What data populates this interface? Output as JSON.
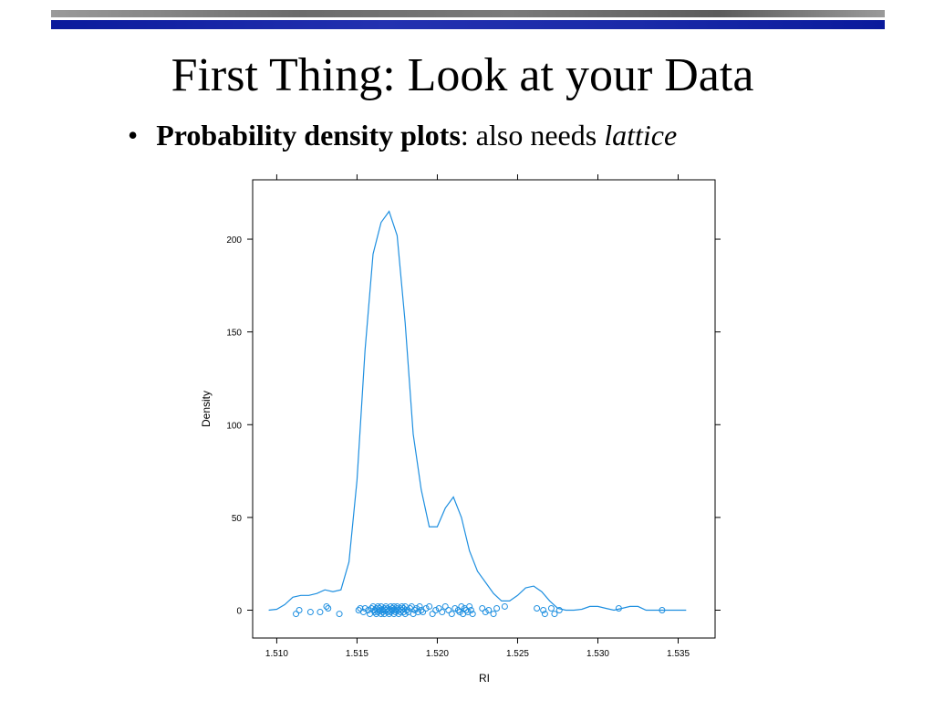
{
  "slide": {
    "title": "First Thing: Look at your Data",
    "bullet_bold": "Probability density plots",
    "bullet_normal": ": also needs ",
    "bullet_italic": "lattice"
  },
  "chart_data": {
    "type": "line",
    "xlabel": "RI",
    "ylabel": "Density",
    "xlim": [
      1.5085,
      1.5373
    ],
    "ylim": [
      -15,
      232
    ],
    "xticks": [
      "1.510",
      "1.515",
      "1.520",
      "1.525",
      "1.530",
      "1.535"
    ],
    "yticks": [
      "0",
      "50",
      "100",
      "150",
      "200"
    ],
    "color": "#1e8fe0",
    "density": {
      "x": [
        1.5095,
        1.51,
        1.5105,
        1.511,
        1.5115,
        1.512,
        1.5125,
        1.513,
        1.5135,
        1.514,
        1.5145,
        1.515,
        1.5155,
        1.516,
        1.5165,
        1.517,
        1.5175,
        1.518,
        1.5185,
        1.519,
        1.5195,
        1.52,
        1.5205,
        1.521,
        1.5215,
        1.522,
        1.5225,
        1.523,
        1.5235,
        1.524,
        1.5245,
        1.525,
        1.5255,
        1.526,
        1.5265,
        1.527,
        1.5275,
        1.528,
        1.5285,
        1.529,
        1.5295,
        1.53,
        1.5305,
        1.531,
        1.5315,
        1.532,
        1.5325,
        1.533,
        1.5335,
        1.534,
        1.5345,
        1.535,
        1.5355
      ],
      "y": [
        0,
        0.5,
        3,
        7,
        8,
        8,
        9,
        11,
        10,
        11,
        26,
        70,
        140,
        192,
        209,
        215,
        202,
        155,
        95,
        65,
        45,
        45,
        55,
        61,
        50,
        32,
        21,
        15,
        9,
        5,
        5,
        8,
        12,
        13,
        10,
        5,
        1,
        0,
        0,
        0.5,
        2,
        2,
        1,
        0,
        1,
        2,
        2,
        0,
        0,
        0,
        0,
        0,
        0
      ]
    },
    "points": {
      "x": [
        1.5112,
        1.5114,
        1.5121,
        1.5127,
        1.5131,
        1.5132,
        1.5139,
        1.5151,
        1.5152,
        1.5154,
        1.5155,
        1.5157,
        1.5158,
        1.5159,
        1.516,
        1.5161,
        1.5161,
        1.5162,
        1.5162,
        1.5163,
        1.5163,
        1.5164,
        1.5164,
        1.5165,
        1.5165,
        1.5166,
        1.5166,
        1.5167,
        1.5167,
        1.5168,
        1.5168,
        1.5169,
        1.5169,
        1.517,
        1.517,
        1.5171,
        1.5171,
        1.5172,
        1.5172,
        1.5173,
        1.5173,
        1.5174,
        1.5174,
        1.5175,
        1.5175,
        1.5176,
        1.5176,
        1.5177,
        1.5177,
        1.5178,
        1.5178,
        1.5179,
        1.5179,
        1.518,
        1.518,
        1.5181,
        1.5182,
        1.5183,
        1.5184,
        1.5185,
        1.5186,
        1.5187,
        1.5188,
        1.5189,
        1.519,
        1.5191,
        1.5193,
        1.5195,
        1.5197,
        1.5199,
        1.5201,
        1.5203,
        1.5205,
        1.5207,
        1.5209,
        1.5211,
        1.5213,
        1.5214,
        1.5215,
        1.5216,
        1.5217,
        1.5218,
        1.5219,
        1.522,
        1.5221,
        1.5222,
        1.5228,
        1.523,
        1.5232,
        1.5235,
        1.5237,
        1.5242,
        1.5262,
        1.5266,
        1.5267,
        1.5271,
        1.5273,
        1.5276,
        1.5313,
        1.534
      ],
      "jitter": [
        -2,
        0,
        -1,
        -1,
        2,
        1,
        -2,
        0,
        1,
        -1,
        1,
        0,
        -2,
        1,
        2,
        -1,
        0,
        1,
        -2,
        2,
        -1,
        0,
        1,
        -2,
        2,
        0,
        -1,
        1,
        -2,
        2,
        0,
        -1,
        1,
        -2,
        0,
        2,
        -1,
        1,
        0,
        -2,
        2,
        0,
        -1,
        1,
        2,
        -2,
        0,
        1,
        -1,
        2,
        0,
        -1,
        1,
        -2,
        2,
        0,
        -1,
        1,
        2,
        -2,
        0,
        1,
        -1,
        2,
        0,
        -1,
        1,
        2,
        -2,
        0,
        1,
        -1,
        2,
        0,
        -2,
        1,
        0,
        -1,
        2,
        -2,
        1,
        0,
        -1,
        2,
        0,
        -2,
        1,
        -1,
        0,
        -2,
        1,
        2,
        1,
        0,
        -2,
        1,
        -2,
        0,
        1,
        0
      ]
    }
  }
}
